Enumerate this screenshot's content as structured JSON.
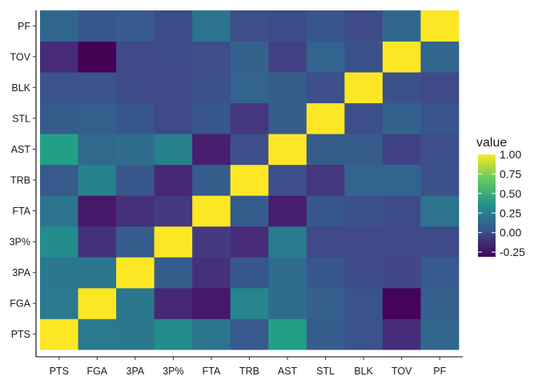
{
  "chart_data": {
    "type": "heatmap",
    "title": "",
    "xlabel": "",
    "ylabel": "",
    "x_categories": [
      "PTS",
      "FGA",
      "3PA",
      "3P%",
      "FTA",
      "TRB",
      "AST",
      "STL",
      "BLK",
      "TOV",
      "PF"
    ],
    "y_categories": [
      "PTS",
      "FGA",
      "3PA",
      "3P%",
      "FTA",
      "TRB",
      "AST",
      "STL",
      "BLK",
      "TOV",
      "PF"
    ],
    "matrix": [
      [
        1.0,
        0.35,
        0.34,
        0.48,
        0.32,
        0.15,
        0.62,
        0.17,
        0.12,
        -0.1,
        0.24
      ],
      [
        0.35,
        1.0,
        0.34,
        -0.12,
        -0.2,
        0.43,
        0.27,
        0.19,
        0.11,
        -0.3,
        0.19
      ],
      [
        0.34,
        0.34,
        1.0,
        0.17,
        -0.08,
        0.14,
        0.27,
        0.14,
        0.07,
        0.03,
        0.16
      ],
      [
        0.48,
        -0.07,
        0.17,
        1.0,
        -0.03,
        -0.1,
        0.37,
        0.05,
        0.05,
        0.05,
        0.07
      ],
      [
        0.32,
        -0.2,
        -0.08,
        -0.03,
        1.0,
        0.17,
        -0.17,
        0.14,
        0.1,
        0.07,
        0.32
      ],
      [
        0.15,
        0.42,
        0.14,
        -0.12,
        0.17,
        1.0,
        0.09,
        -0.05,
        0.22,
        0.22,
        0.1
      ],
      [
        0.62,
        0.25,
        0.27,
        0.4,
        -0.17,
        0.09,
        1.0,
        0.17,
        0.17,
        0.01,
        0.09
      ],
      [
        0.17,
        0.19,
        0.14,
        0.05,
        0.14,
        -0.05,
        0.17,
        1.0,
        0.09,
        0.21,
        0.13
      ],
      [
        0.12,
        0.11,
        0.07,
        0.06,
        0.1,
        0.22,
        0.17,
        0.09,
        1.0,
        0.1,
        0.05
      ],
      [
        -0.1,
        -0.31,
        0.04,
        0.07,
        0.08,
        0.21,
        0.01,
        0.22,
        0.1,
        1.0,
        0.24
      ],
      [
        0.24,
        0.14,
        0.16,
        0.07,
        0.32,
        0.08,
        0.07,
        0.13,
        0.06,
        0.24,
        1.0
      ]
    ],
    "legend": {
      "title": "value",
      "placement": "right",
      "ticks": [
        "1.00",
        "0.75",
        "0.50",
        "0.25",
        "0.00",
        "-0.25"
      ],
      "tick_values": [
        1.0,
        0.75,
        0.5,
        0.25,
        0.0,
        -0.25
      ],
      "range": [
        -0.31,
        1.0
      ]
    },
    "colorscale": "viridis",
    "grid": false
  }
}
